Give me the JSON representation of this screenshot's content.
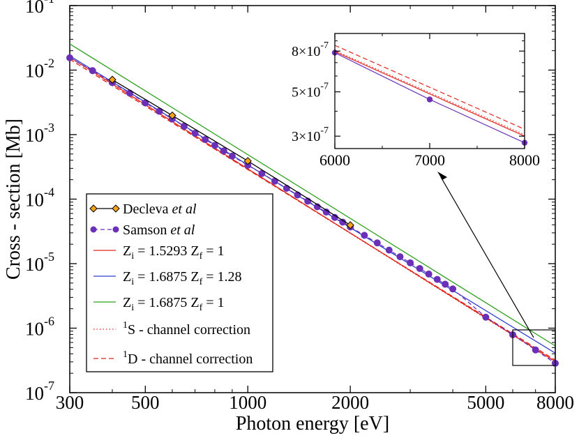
{
  "chart_data": [
    {
      "type": "line",
      "title": "",
      "xlabel": "Photon energy [eV]",
      "ylabel": "Cross - section [Mb]",
      "xscale": "log",
      "yscale": "log",
      "xlim": [
        300,
        8000
      ],
      "ylim": [
        1e-07,
        0.1
      ],
      "x_ticks": [
        {
          "value": 300,
          "label": "300"
        },
        {
          "value": 500,
          "label": "500"
        },
        {
          "value": 1000,
          "label": "1000"
        },
        {
          "value": 2000,
          "label": "2000"
        },
        {
          "value": 5000,
          "label": "5000"
        },
        {
          "value": 8000,
          "label": "8000"
        }
      ],
      "y_ticks": [
        {
          "value": 1e-07,
          "base": "10",
          "exp": "-7"
        },
        {
          "value": 1e-06,
          "base": "10",
          "exp": "-6"
        },
        {
          "value": 1e-05,
          "base": "10",
          "exp": "-5"
        },
        {
          "value": 0.0001,
          "base": "10",
          "exp": "-4"
        },
        {
          "value": 0.001,
          "base": "10",
          "exp": "-3"
        },
        {
          "value": 0.01,
          "base": "10",
          "exp": "-2"
        },
        {
          "value": 0.1,
          "base": "10",
          "exp": "-1"
        }
      ],
      "grid": false,
      "legend_position": "bottom-left",
      "series": [
        {
          "key": "decleva",
          "legend": {
            "prefix": "Decleva ",
            "italic": "et al"
          },
          "color": "#f4a21a",
          "line_color": "#000000",
          "marker": "diamond",
          "points": [
            [
              400,
              0.0071
            ],
            [
              600,
              0.00198
            ],
            [
              1000,
              0.00039
            ],
            [
              2000,
              3.95e-05
            ]
          ]
        },
        {
          "key": "samson",
          "legend": {
            "prefix": "Samson ",
            "italic": "et al"
          },
          "color": "#6a30b8",
          "line_color": "#6a30b8",
          "marker": "circle",
          "dashed": true,
          "points": [
            [
              300,
              0.0155
            ],
            [
              350,
              0.0098
            ],
            [
              400,
              0.0064
            ],
            [
              450,
              0.0044
            ],
            [
              500,
              0.0031
            ],
            [
              550,
              0.0023
            ],
            [
              600,
              0.00175
            ],
            [
              650,
              0.00135
            ],
            [
              700,
              0.00105
            ],
            [
              750,
              0.00084
            ],
            [
              800,
              0.00068
            ],
            [
              850,
              0.00056
            ],
            [
              900,
              0.000465
            ],
            [
              1000,
              0.000335
            ],
            [
              1100,
              0.00025
            ],
            [
              1200,
              0.00019
            ],
            [
              1300,
              0.000147
            ],
            [
              1400,
              0.000116
            ],
            [
              1500,
              9.3e-05
            ],
            [
              1600,
              7.6e-05
            ],
            [
              1700,
              6.3e-05
            ],
            [
              1800,
              5.2e-05
            ],
            [
              1900,
              4.4e-05
            ],
            [
              2000,
              3.7e-05
            ],
            [
              2200,
              2.75e-05
            ],
            [
              2400,
              2.1e-05
            ],
            [
              2600,
              1.62e-05
            ],
            [
              2800,
              1.28e-05
            ],
            [
              3000,
              1.03e-05
            ],
            [
              3200,
              8.4e-06
            ],
            [
              3400,
              6.9e-06
            ],
            [
              3600,
              5.7e-06
            ],
            [
              3800,
              4.8e-06
            ],
            [
              4000,
              4.05e-06
            ],
            [
              5000,
              1.48e-06
            ],
            [
              6000,
              7.9e-07
            ],
            [
              7000,
              4.6e-07
            ],
            [
              8000,
              2.85e-07
            ]
          ]
        },
        {
          "key": "z15293",
          "legend": {
            "zi": "1.5293",
            "zf": "1"
          },
          "color": "#e0241b",
          "style": "solid",
          "endpoints": [
            [
              300,
              0.0158
            ],
            [
              8000,
              3.05e-07
            ]
          ]
        },
        {
          "key": "z16875_128",
          "legend": {
            "zi": "1.6875",
            "zf": "1.28"
          },
          "color": "#2c3fd1",
          "style": "solid",
          "endpoints": [
            [
              300,
              0.0166
            ],
            [
              8000,
              4.1e-07
            ]
          ]
        },
        {
          "key": "z16875_1",
          "legend": {
            "zi": "1.6875",
            "zf": "1"
          },
          "color": "#2ea01f",
          "style": "solid",
          "endpoints": [
            [
              300,
              0.0255
            ],
            [
              8000,
              5.3e-07
            ]
          ]
        },
        {
          "key": "s_channel",
          "legend": {
            "sup": "1",
            "text": "S - channel correction"
          },
          "color": "#e0241b",
          "style": "dotted",
          "endpoints": [
            [
              300,
              0.0156
            ],
            [
              8000,
              3e-07
            ]
          ]
        },
        {
          "key": "d_channel",
          "legend": {
            "sup": "1",
            "text": "D - channel correction"
          },
          "color": "#e0241b",
          "style": "dashed",
          "endpoints": [
            [
              300,
              0.0147
            ],
            [
              8000,
              3.2e-07
            ]
          ]
        }
      ]
    },
    {
      "type": "line",
      "title": "",
      "xscale": "linear",
      "yscale": "log",
      "xlim": [
        6000,
        8000
      ],
      "ylim": [
        2.6e-07,
        9.8e-07
      ],
      "x_ticks": [
        {
          "value": 6000,
          "label": "6000"
        },
        {
          "value": 7000,
          "label": "7000"
        },
        {
          "value": 8000,
          "label": "8000"
        }
      ],
      "y_ticks": [
        {
          "value": 3e-07,
          "mant": "3×10",
          "exp": "-7"
        },
        {
          "value": 5e-07,
          "mant": "5×10",
          "exp": "-7"
        },
        {
          "value": 8e-07,
          "mant": "8×10",
          "exp": "-7"
        }
      ],
      "series": [
        {
          "key": "samson",
          "color": "#6a30b8",
          "style": "solid",
          "points": [
            [
              6000,
              7.85e-07
            ],
            [
              7000,
              4.58e-07
            ],
            [
              8000,
              2.78e-07
            ]
          ]
        },
        {
          "key": "z15293",
          "color": "#e0241b",
          "style": "solid",
          "endpoints": [
            [
              6000,
              7.95e-07
            ],
            [
              8000,
              3e-07
            ]
          ]
        },
        {
          "key": "s_channel",
          "color": "#e0241b",
          "style": "dotted",
          "endpoints": [
            [
              6000,
              8.05e-07
            ],
            [
              8000,
              3.05e-07
            ]
          ]
        },
        {
          "key": "d_channel",
          "color": "#e0241b",
          "style": "dashed",
          "endpoints": [
            [
              6000,
              8.55e-07
            ],
            [
              8000,
              3.25e-07
            ]
          ]
        }
      ]
    }
  ]
}
